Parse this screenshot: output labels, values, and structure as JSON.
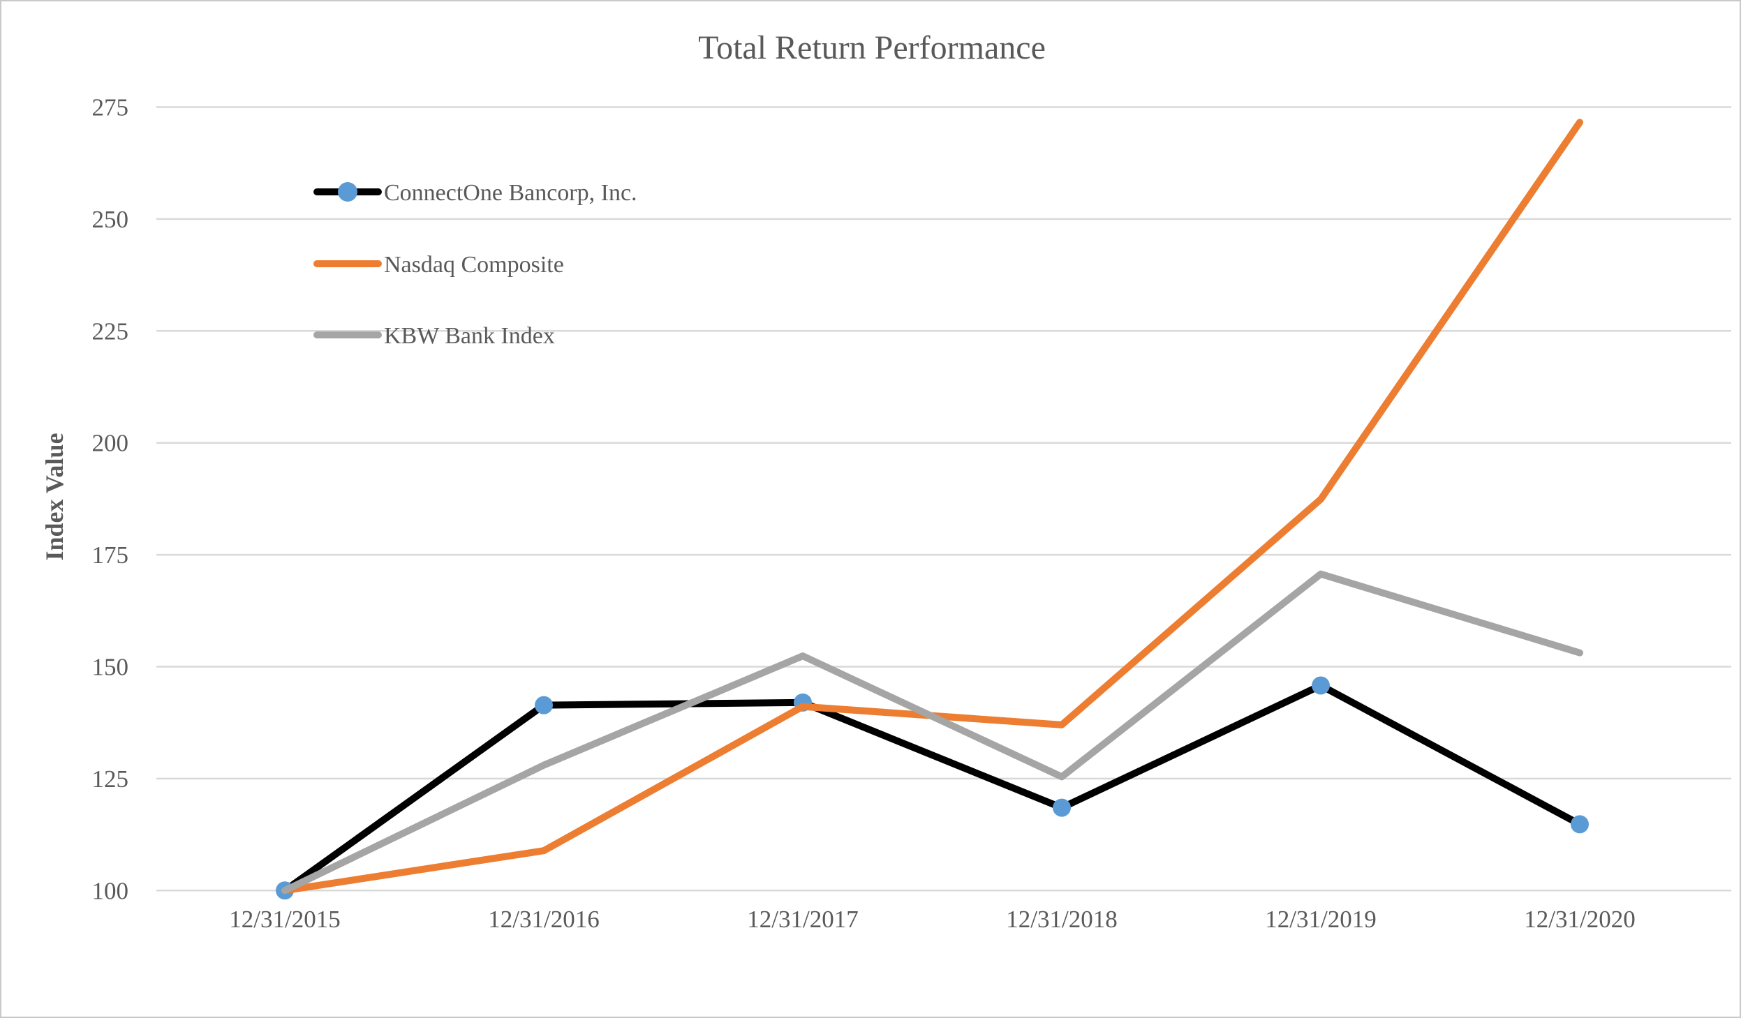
{
  "chart": {
    "title": "Total Return Performance",
    "ylabel": "Index Value"
  },
  "chart_data": {
    "type": "line",
    "title": "Total Return Performance",
    "xlabel": "",
    "ylabel": "Index Value",
    "categories": [
      "12/31/2015",
      "12/31/2016",
      "12/31/2017",
      "12/31/2018",
      "12/31/2019",
      "12/31/2020"
    ],
    "series": [
      {
        "name": "ConnectOne Bancorp, Inc.",
        "color": "#000000",
        "marker": {
          "shape": "circle",
          "color": "#5B9BD5"
        },
        "values": [
          100,
          141.4,
          142.0,
          118.5,
          145.8,
          114.8
        ]
      },
      {
        "name": "Nasdaq Composite",
        "color": "#ED7D31",
        "values": [
          100,
          108.9,
          141.1,
          137.0,
          187.4,
          271.6
        ]
      },
      {
        "name": "KBW Bank Index",
        "color": "#A5A5A5",
        "values": [
          100,
          128.0,
          152.4,
          125.4,
          170.7,
          153.1
        ]
      }
    ],
    "ylim": [
      100,
      275
    ],
    "ytick_step": 25,
    "yticks": [
      100,
      125,
      150,
      175,
      200,
      225,
      250,
      275
    ],
    "grid": "horizontal",
    "legend_position": "inside-top-left",
    "colors": {
      "background": "#FFFFFF",
      "gridline": "#D9D9D9",
      "text": "#595959",
      "frame_border": "#C9C9C9"
    }
  }
}
